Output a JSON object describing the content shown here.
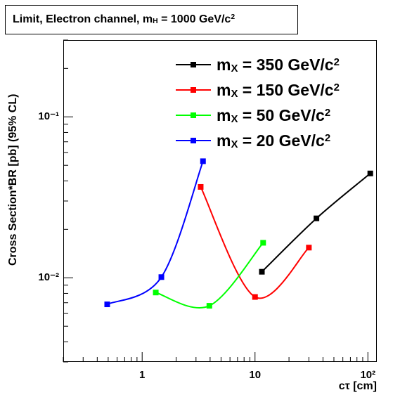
{
  "chart_data": {
    "type": "line",
    "title": "Limit, Electron channel, mH = 1000 GeV/c2",
    "x_label": "cτ [cm]",
    "y_label": "Cross Section*BR [pb] (95% CL)",
    "log_x": true,
    "log_y": true,
    "xlim": [
      0.2,
      120
    ],
    "ylim": [
      0.003,
      0.3
    ],
    "xticks": [
      1,
      10,
      {
        "value": 100,
        "label": "10²"
      }
    ],
    "yticks": [
      {
        "value": 0.01,
        "label": "10⁻²"
      },
      {
        "value": 0.1,
        "label": "10⁻¹"
      }
    ],
    "xminorticks": [
      0.2,
      0.3,
      0.4,
      0.5,
      0.6,
      0.7,
      0.8,
      0.9,
      2,
      3,
      4,
      5,
      6,
      7,
      8,
      9,
      20,
      30,
      40,
      50,
      60,
      70,
      80,
      90
    ],
    "yminorticks": [
      0.003,
      0.004,
      0.005,
      0.006,
      0.007,
      0.008,
      0.009,
      0.02,
      0.03,
      0.04,
      0.05,
      0.06,
      0.07,
      0.08,
      0.09,
      0.2,
      0.3
    ],
    "legend": "upper right",
    "series": [
      {
        "name": "mX = 350 GeV/c2",
        "color": "#000000",
        "x": [
          11.5,
          35,
          105
        ],
        "values": [
          0.0109,
          0.0234,
          0.0445
        ]
      },
      {
        "name": "mX = 150 GeV/c2",
        "color": "#ff0000",
        "x": [
          3.3,
          10,
          30
        ],
        "values": [
          0.0367,
          0.0076,
          0.0154
        ]
      },
      {
        "name": "mX = 50 GeV/c2",
        "color": "#00ff00",
        "x": [
          1.32,
          3.94,
          11.8
        ],
        "values": [
          0.0081,
          0.0067,
          0.0165
        ]
      },
      {
        "name": "mX = 20 GeV/c2",
        "color": "#0000ff",
        "x": [
          0.49,
          1.48,
          3.46
        ],
        "values": [
          0.00684,
          0.0101,
          0.053
        ]
      }
    ]
  }
}
